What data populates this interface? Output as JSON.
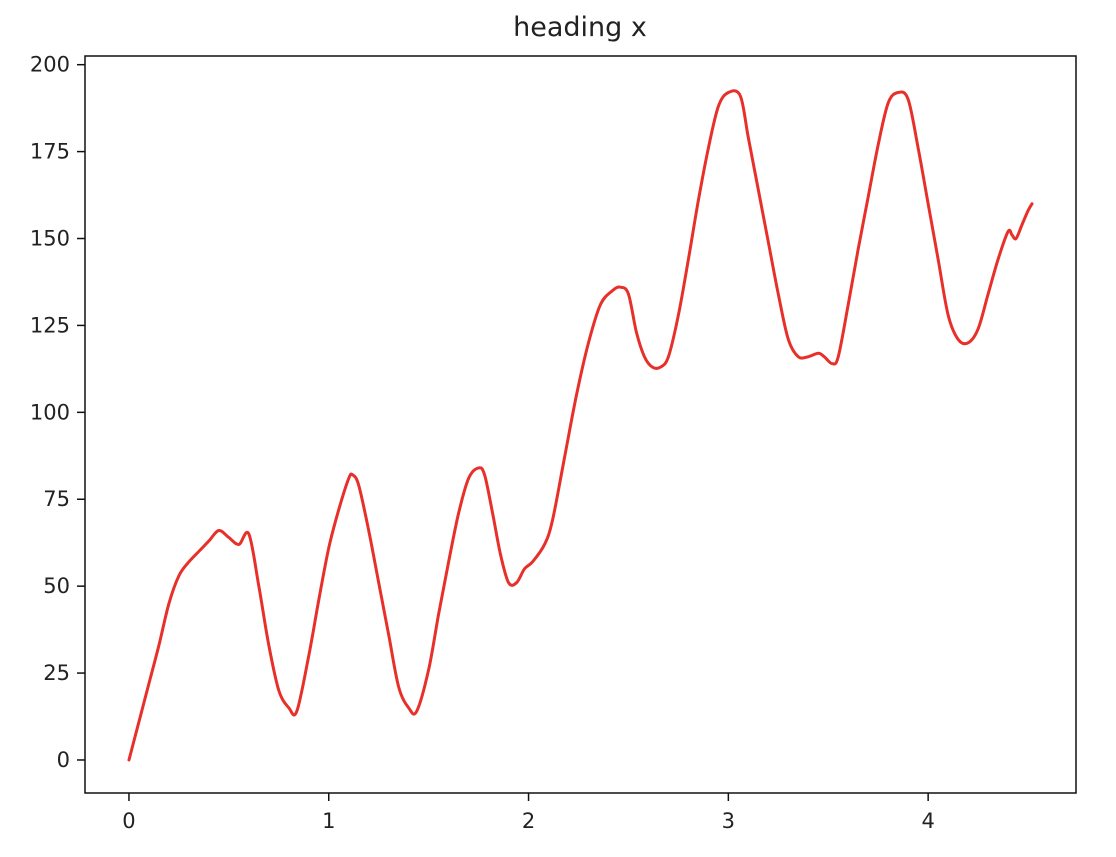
{
  "chart_data": {
    "type": "line",
    "title": "heading x",
    "xlabel": "",
    "ylabel": "",
    "xlim": [
      -0.22,
      4.74
    ],
    "ylim": [
      -9.5,
      202.5
    ],
    "x_ticks": [
      0,
      1,
      2,
      3,
      4
    ],
    "x_tick_labels": [
      "0",
      "1",
      "2",
      "3",
      "4"
    ],
    "y_ticks": [
      0,
      25,
      50,
      75,
      100,
      125,
      150,
      175,
      200
    ],
    "y_tick_labels": [
      "0",
      "25",
      "50",
      "75",
      "100",
      "125",
      "150",
      "175",
      "200"
    ],
    "grid": false,
    "legend": "none",
    "series": [
      {
        "color": "#e8302a",
        "x": [
          0.0,
          0.05,
          0.1,
          0.15,
          0.2,
          0.25,
          0.3,
          0.35,
          0.4,
          0.45,
          0.5,
          0.55,
          0.6,
          0.65,
          0.7,
          0.75,
          0.8,
          0.84,
          0.9,
          0.95,
          1.0,
          1.05,
          1.1,
          1.12,
          1.15,
          1.2,
          1.25,
          1.3,
          1.35,
          1.4,
          1.44,
          1.5,
          1.55,
          1.6,
          1.65,
          1.7,
          1.75,
          1.78,
          1.82,
          1.86,
          1.9,
          1.94,
          1.98,
          2.02,
          2.08,
          2.12,
          2.18,
          2.24,
          2.3,
          2.36,
          2.42,
          2.46,
          2.5,
          2.54,
          2.58,
          2.62,
          2.66,
          2.7,
          2.75,
          2.8,
          2.85,
          2.9,
          2.95,
          3.0,
          3.06,
          3.1,
          3.15,
          3.2,
          3.25,
          3.3,
          3.35,
          3.4,
          3.45,
          3.48,
          3.52,
          3.55,
          3.6,
          3.65,
          3.7,
          3.75,
          3.8,
          3.85,
          3.9,
          3.95,
          4.0,
          4.05,
          4.1,
          4.15,
          4.2,
          4.25,
          4.3,
          4.35,
          4.4,
          4.42,
          4.44,
          4.47,
          4.5,
          4.52
        ],
        "y": [
          0,
          11,
          22,
          33,
          45,
          53,
          57,
          60,
          63,
          66,
          64,
          62,
          65,
          50,
          33,
          20,
          15,
          14,
          30,
          46,
          61,
          72,
          81,
          82,
          79,
          66,
          51,
          36,
          21,
          15,
          14,
          26,
          42,
          57,
          71,
          81,
          84,
          82,
          71,
          59,
          51,
          51,
          55,
          57,
          62,
          69,
          87,
          105,
          120,
          131,
          135,
          136,
          134,
          123,
          116,
          113,
          113,
          116,
          128,
          144,
          161,
          176,
          188,
          192,
          191,
          179,
          164,
          149,
          134,
          121,
          116,
          116,
          117,
          116,
          114,
          116,
          131,
          147,
          162,
          177,
          189,
          192,
          190,
          176,
          160,
          144,
          128,
          121,
          120,
          124,
          134,
          144,
          152,
          151,
          150,
          154,
          158,
          160
        ]
      }
    ]
  }
}
